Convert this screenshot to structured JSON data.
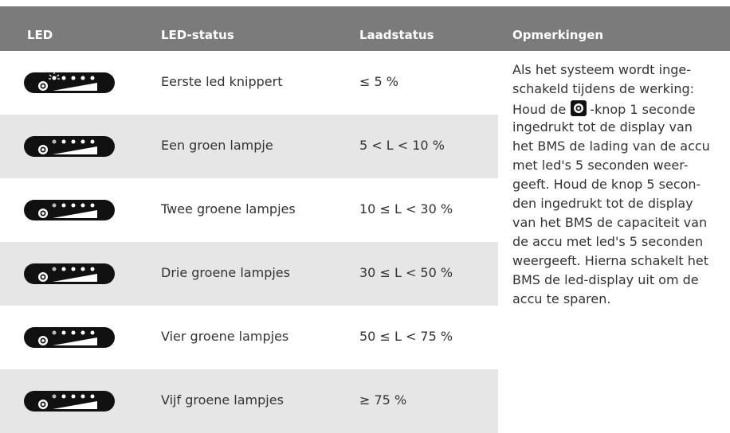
{
  "table": {
    "header": [
      "LED",
      "LED-status",
      "Laadstatus",
      "Opmerkingen"
    ],
    "rows": [
      [
        "Eerste led knippert",
        "≤ 5 %"
      ],
      [
        "Een groen lampje",
        "5 < L < 10 %"
      ],
      [
        "Twee groene lampjes",
        "10 ≤ L < 30 %"
      ],
      [
        "Drie groene lampjes",
        "30 ≤ L < 50 %"
      ],
      [
        "Vier groene lampjes",
        "50 ≤ L < 75 %"
      ],
      [
        "Vijf groene lampjes",
        "≥ 75 %"
      ]
    ],
    "remarks": [
      "Als het systeem wordt inge-",
      "schakeld tijdens de werking:",
      [
        "Houd de",
        "-knop 1 seconde"
      ],
      "ingedrukt tot de display van",
      "het BMS de lading van de accu",
      "met led's 5 seconden weer-",
      "geeft. Houd de knop 5 secon-",
      "den ingedrukt tot de display",
      "van het BMS de capaciteit van",
      "de accu met led's 5 seconden",
      "weergeeft. Hierna schakelt het",
      "BMS de led-display uit om de",
      "accu te sparen."
    ]
  }
}
